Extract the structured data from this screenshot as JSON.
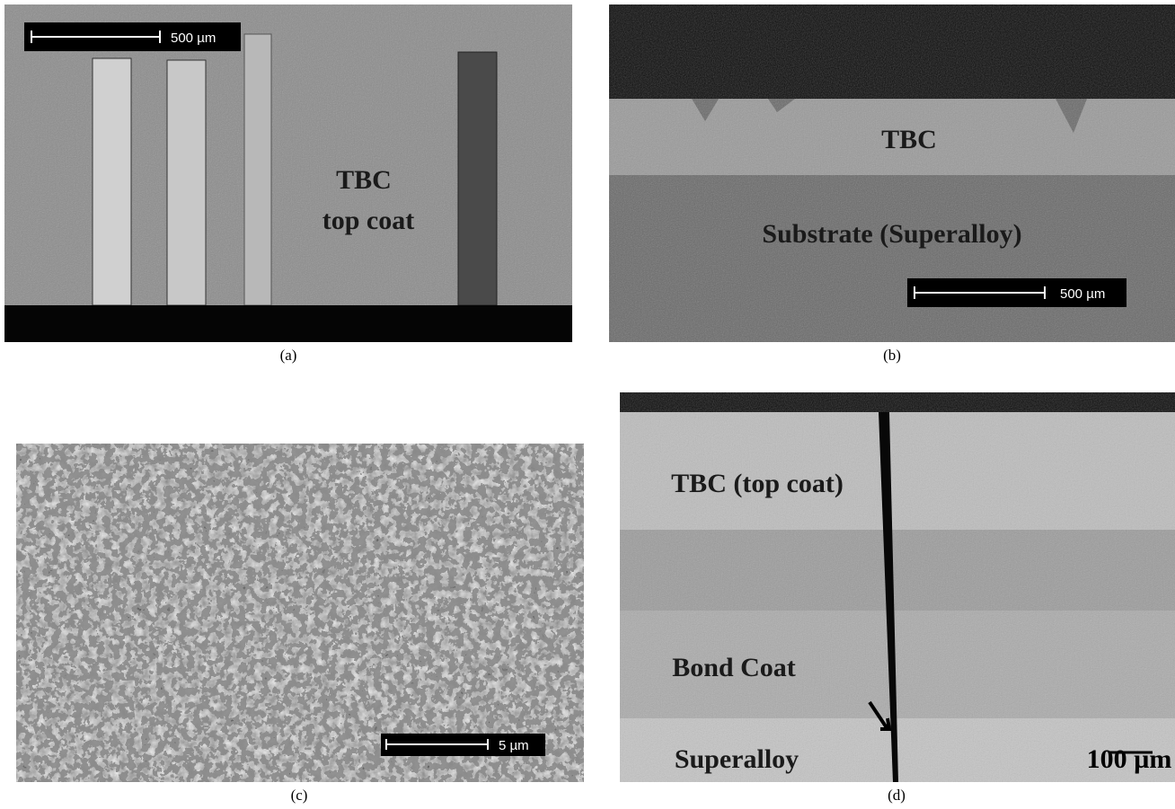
{
  "panels": [
    {
      "caption": "(a)",
      "labels": [
        "TBC",
        "top coat"
      ],
      "scale_bar": "500 µm"
    },
    {
      "caption": "(b)",
      "labels": [
        "TBC",
        "Substrate (Superalloy)"
      ],
      "scale_bar": "500 µm"
    },
    {
      "caption": "(c)",
      "labels": [],
      "scale_bar": "5 µm"
    },
    {
      "caption": "(d)",
      "labels": [
        "TBC (top coat)",
        "Bond Coat",
        "Superalloy"
      ],
      "scale_bar": "100 µm"
    }
  ]
}
